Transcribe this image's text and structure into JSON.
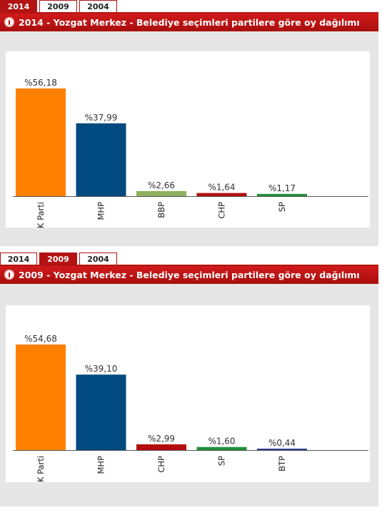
{
  "panels": [
    {
      "tabs": [
        {
          "label": "2014",
          "active": true
        },
        {
          "label": "2009",
          "active": false
        },
        {
          "label": "2004",
          "active": false
        }
      ],
      "title": "2014 - Yozgat Merkez - Belediye seçimleri partilere göre oy dağılımı"
    },
    {
      "tabs": [
        {
          "label": "2014",
          "active": false
        },
        {
          "label": "2009",
          "active": true
        },
        {
          "label": "2004",
          "active": false
        }
      ],
      "title": "2009 - Yozgat Merkez - Belediye seçimleri partilere göre oy dağılımı"
    }
  ],
  "chart_data": [
    {
      "type": "bar",
      "categories": [
        "AK Parti",
        "MHP",
        "BBP",
        "CHP",
        "SP"
      ],
      "values": [
        56.18,
        37.99,
        2.66,
        1.64,
        1.17
      ],
      "data_labels": [
        "%56,18",
        "%37,99",
        "%2,66",
        "%1,64",
        "%1,17"
      ],
      "colors": [
        "#ff7f00",
        "#004a7f",
        "#8fb05f",
        "#b30e0e",
        "#1f8f3a"
      ],
      "ylim": [
        0,
        56.18
      ],
      "grid": false,
      "legend": "none",
      "title": "2014 - Yozgat Merkez - Belediye seçimleri partilere göre oy dağılımı"
    },
    {
      "type": "bar",
      "categories": [
        "AK Parti",
        "MHP",
        "CHP",
        "SP",
        "BTP"
      ],
      "values": [
        54.68,
        39.1,
        2.99,
        1.6,
        0.44
      ],
      "data_labels": [
        "%54,68",
        "%39,10",
        "%2,99",
        "%1,60",
        "%0,44"
      ],
      "colors": [
        "#ff7f00",
        "#004a7f",
        "#b30e0e",
        "#1f8f3a",
        "#2a3d8f"
      ],
      "ylim": [
        0,
        54.68
      ],
      "grid": false,
      "legend": "none",
      "title": "2009 - Yozgat Merkez - Belediye seçimleri partilere göre oy dağılımı"
    }
  ]
}
